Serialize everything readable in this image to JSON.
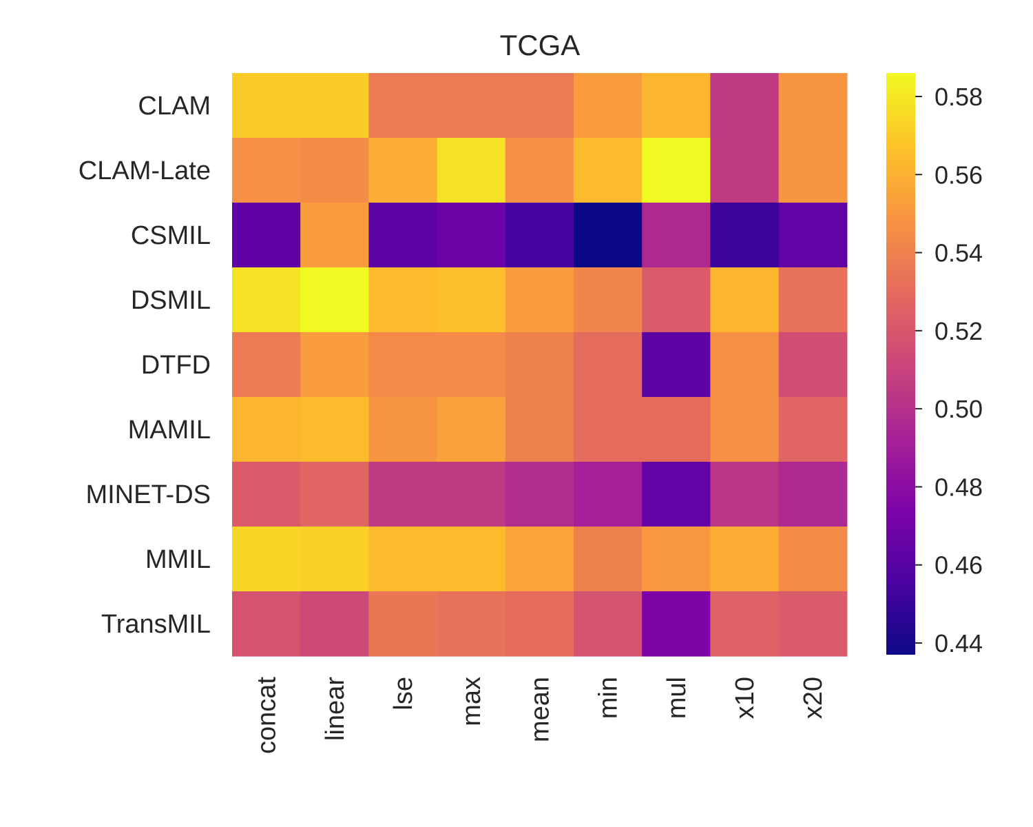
{
  "chart_data": {
    "type": "heatmap",
    "title": "TCGA",
    "xlabel": "",
    "ylabel": "",
    "x_categories": [
      "concat",
      "linear",
      "lse",
      "max",
      "mean",
      "min",
      "mul",
      "x10",
      "x20"
    ],
    "y_categories": [
      "CLAM",
      "CLAM-Late",
      "CSMIL",
      "DSMIL",
      "DTFD",
      "MAMIL",
      "MINET-DS",
      "MMIL",
      "TransMIL"
    ],
    "values": [
      [
        0.57,
        0.57,
        0.537,
        0.537,
        0.537,
        0.552,
        0.562,
        0.505,
        0.549
      ],
      [
        0.547,
        0.545,
        0.559,
        0.578,
        0.547,
        0.564,
        0.586,
        0.505,
        0.549
      ],
      [
        0.464,
        0.552,
        0.462,
        0.468,
        0.454,
        0.437,
        0.496,
        0.451,
        0.465
      ],
      [
        0.578,
        0.586,
        0.564,
        0.566,
        0.552,
        0.542,
        0.522,
        0.562,
        0.533
      ],
      [
        0.537,
        0.552,
        0.544,
        0.544,
        0.54,
        0.53,
        0.462,
        0.547,
        0.515
      ],
      [
        0.562,
        0.564,
        0.549,
        0.554,
        0.54,
        0.53,
        0.53,
        0.547,
        0.527
      ],
      [
        0.522,
        0.527,
        0.505,
        0.505,
        0.498,
        0.492,
        0.465,
        0.503,
        0.496
      ],
      [
        0.574,
        0.572,
        0.564,
        0.564,
        0.555,
        0.54,
        0.55,
        0.559,
        0.545
      ],
      [
        0.518,
        0.513,
        0.535,
        0.533,
        0.53,
        0.518,
        0.475,
        0.525,
        0.522
      ]
    ],
    "colormap": "plasma",
    "vmin": 0.437,
    "vmax": 0.586,
    "colorbar_ticks": [
      0.58,
      0.56,
      0.54,
      0.52,
      0.5,
      0.48,
      0.46,
      0.44
    ],
    "colorbar_tick_labels": [
      "0.58",
      "0.56",
      "0.54",
      "0.52",
      "0.50",
      "0.48",
      "0.46",
      "0.44"
    ],
    "grid": false
  }
}
